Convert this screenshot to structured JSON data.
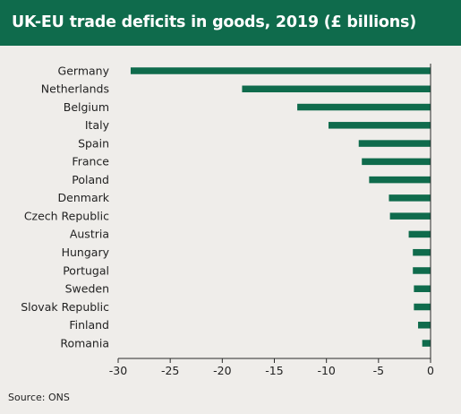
{
  "header": {
    "title": "UK-EU trade deficits in goods, 2019 (£ billions)"
  },
  "source": "Source: ONS",
  "colors": {
    "header": "#0f6b4c",
    "bar": "#0f6b4c",
    "axis": "#2b2b2b",
    "background": "#efedea"
  },
  "chart_data": {
    "type": "bar",
    "orientation": "horizontal",
    "title": "UK-EU trade deficits in goods, 2019 (£ billions)",
    "xlabel": "",
    "ylabel": "",
    "categories": [
      "Germany",
      "Netherlands",
      "Belgium",
      "Italy",
      "Spain",
      "France",
      "Poland",
      "Denmark",
      "Czech Republic",
      "Austria",
      "Hungary",
      "Portugal",
      "Sweden",
      "Slovak Republic",
      "Finland",
      "Romania"
    ],
    "values": [
      -28.8,
      -18.1,
      -12.8,
      -9.8,
      -6.9,
      -6.6,
      -5.9,
      -4.0,
      -3.9,
      -2.1,
      -1.7,
      -1.7,
      -1.6,
      -1.6,
      -1.2,
      -0.8
    ],
    "xlim": [
      -30,
      0
    ],
    "xticks": [
      -30,
      -25,
      -20,
      -15,
      -10,
      -5,
      0
    ],
    "xtick_labels": [
      "-30",
      "-25",
      "-20",
      "-15",
      "-10",
      "-5",
      "0"
    ],
    "grid": false,
    "legend": "none"
  }
}
